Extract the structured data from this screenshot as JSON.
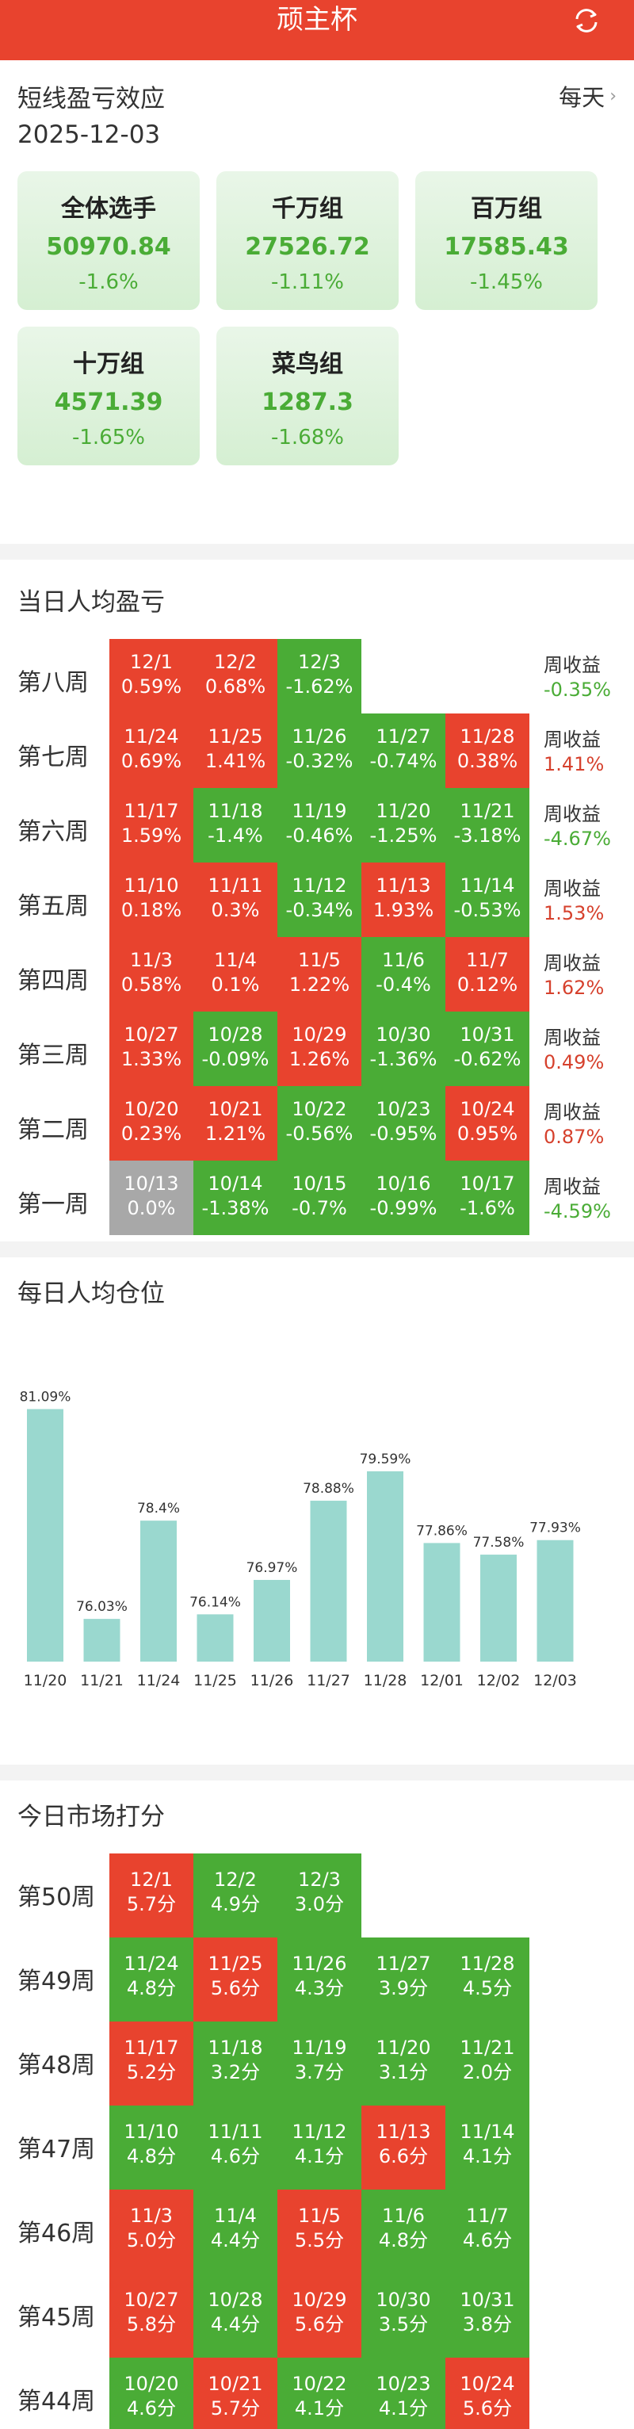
{
  "header": {
    "title": "顽主杯"
  },
  "summary": {
    "title": "短线盈亏效应",
    "frequency": "每天",
    "date": "2025-12-03",
    "groups": [
      {
        "name": "全体选手",
        "value": "50970.84",
        "change": "-1.6%"
      },
      {
        "name": "千万组",
        "value": "27526.72",
        "change": "-1.11%"
      },
      {
        "name": "百万组",
        "value": "17585.43",
        "change": "-1.45%"
      },
      {
        "name": "十万组",
        "value": "4571.39",
        "change": "-1.65%"
      },
      {
        "name": "菜鸟组",
        "value": "1287.3",
        "change": "-1.68%"
      }
    ]
  },
  "daily_pnl": {
    "title": "当日人均盈亏",
    "week_return_label": "周收益",
    "weeks": [
      {
        "label": "第八周",
        "week_return": "-0.35%",
        "days": [
          {
            "date": "12/1",
            "value": "0.59%",
            "color": "red"
          },
          {
            "date": "12/2",
            "value": "0.68%",
            "color": "red"
          },
          {
            "date": "12/3",
            "value": "-1.62%",
            "color": "green"
          }
        ]
      },
      {
        "label": "第七周",
        "week_return": "1.41%",
        "days": [
          {
            "date": "11/24",
            "value": "0.69%",
            "color": "red"
          },
          {
            "date": "11/25",
            "value": "1.41%",
            "color": "red"
          },
          {
            "date": "11/26",
            "value": "-0.32%",
            "color": "green"
          },
          {
            "date": "11/27",
            "value": "-0.74%",
            "color": "green"
          },
          {
            "date": "11/28",
            "value": "0.38%",
            "color": "red"
          }
        ]
      },
      {
        "label": "第六周",
        "week_return": "-4.67%",
        "days": [
          {
            "date": "11/17",
            "value": "1.59%",
            "color": "red"
          },
          {
            "date": "11/18",
            "value": "-1.4%",
            "color": "green"
          },
          {
            "date": "11/19",
            "value": "-0.46%",
            "color": "green"
          },
          {
            "date": "11/20",
            "value": "-1.25%",
            "color": "green"
          },
          {
            "date": "11/21",
            "value": "-3.18%",
            "color": "green"
          }
        ]
      },
      {
        "label": "第五周",
        "week_return": "1.53%",
        "days": [
          {
            "date": "11/10",
            "value": "0.18%",
            "color": "red"
          },
          {
            "date": "11/11",
            "value": "0.3%",
            "color": "red"
          },
          {
            "date": "11/12",
            "value": "-0.34%",
            "color": "green"
          },
          {
            "date": "11/13",
            "value": "1.93%",
            "color": "red"
          },
          {
            "date": "11/14",
            "value": "-0.53%",
            "color": "green"
          }
        ]
      },
      {
        "label": "第四周",
        "week_return": "1.62%",
        "days": [
          {
            "date": "11/3",
            "value": "0.58%",
            "color": "red"
          },
          {
            "date": "11/4",
            "value": "0.1%",
            "color": "red"
          },
          {
            "date": "11/5",
            "value": "1.22%",
            "color": "red"
          },
          {
            "date": "11/6",
            "value": "-0.4%",
            "color": "green"
          },
          {
            "date": "11/7",
            "value": "0.12%",
            "color": "red"
          }
        ]
      },
      {
        "label": "第三周",
        "week_return": "0.49%",
        "days": [
          {
            "date": "10/27",
            "value": "1.33%",
            "color": "red"
          },
          {
            "date": "10/28",
            "value": "-0.09%",
            "color": "green"
          },
          {
            "date": "10/29",
            "value": "1.26%",
            "color": "red"
          },
          {
            "date": "10/30",
            "value": "-1.36%",
            "color": "green"
          },
          {
            "date": "10/31",
            "value": "-0.62%",
            "color": "green"
          }
        ]
      },
      {
        "label": "第二周",
        "week_return": "0.87%",
        "days": [
          {
            "date": "10/20",
            "value": "0.23%",
            "color": "red"
          },
          {
            "date": "10/21",
            "value": "1.21%",
            "color": "red"
          },
          {
            "date": "10/22",
            "value": "-0.56%",
            "color": "green"
          },
          {
            "date": "10/23",
            "value": "-0.95%",
            "color": "green"
          },
          {
            "date": "10/24",
            "value": "0.95%",
            "color": "red"
          }
        ]
      },
      {
        "label": "第一周",
        "week_return": "-4.59%",
        "days": [
          {
            "date": "10/13",
            "value": "0.0%",
            "color": "gray"
          },
          {
            "date": "10/14",
            "value": "-1.38%",
            "color": "green"
          },
          {
            "date": "10/15",
            "value": "-0.7%",
            "color": "green"
          },
          {
            "date": "10/16",
            "value": "-0.99%",
            "color": "green"
          },
          {
            "date": "10/17",
            "value": "-1.6%",
            "color": "green"
          }
        ]
      }
    ]
  },
  "position": {
    "title": "每日人均仓位"
  },
  "chart_data": {
    "type": "bar",
    "title": "每日人均仓位",
    "categories": [
      "11/20",
      "11/21",
      "11/24",
      "11/25",
      "11/26",
      "11/27",
      "11/28",
      "12/01",
      "12/02",
      "12/03"
    ],
    "values": [
      81.09,
      76.03,
      78.4,
      76.14,
      76.97,
      78.88,
      79.59,
      77.86,
      77.58,
      77.93
    ],
    "labels": [
      "81.09%",
      "76.03%",
      "78.4%",
      "76.14%",
      "76.97%",
      "78.88%",
      "79.59%",
      "77.86%",
      "77.58%",
      "77.93%"
    ],
    "ylim": [
      75,
      81.5
    ],
    "bar_color": "#9ad8cf"
  },
  "market_score": {
    "title": "今日市场打分",
    "weeks": [
      {
        "label": "第50周",
        "days": [
          {
            "date": "12/1",
            "value": "5.7分",
            "color": "red"
          },
          {
            "date": "12/2",
            "value": "4.9分",
            "color": "green"
          },
          {
            "date": "12/3",
            "value": "3.0分",
            "color": "green"
          }
        ]
      },
      {
        "label": "第49周",
        "days": [
          {
            "date": "11/24",
            "value": "4.8分",
            "color": "green"
          },
          {
            "date": "11/25",
            "value": "5.6分",
            "color": "red"
          },
          {
            "date": "11/26",
            "value": "4.3分",
            "color": "green"
          },
          {
            "date": "11/27",
            "value": "3.9分",
            "color": "green"
          },
          {
            "date": "11/28",
            "value": "4.5分",
            "color": "green"
          }
        ]
      },
      {
        "label": "第48周",
        "days": [
          {
            "date": "11/17",
            "value": "5.2分",
            "color": "red"
          },
          {
            "date": "11/18",
            "value": "3.2分",
            "color": "green"
          },
          {
            "date": "11/19",
            "value": "3.7分",
            "color": "green"
          },
          {
            "date": "11/20",
            "value": "3.1分",
            "color": "green"
          },
          {
            "date": "11/21",
            "value": "2.0分",
            "color": "green"
          }
        ]
      },
      {
        "label": "第47周",
        "days": [
          {
            "date": "11/10",
            "value": "4.8分",
            "color": "green"
          },
          {
            "date": "11/11",
            "value": "4.6分",
            "color": "green"
          },
          {
            "date": "11/12",
            "value": "4.1分",
            "color": "green"
          },
          {
            "date": "11/13",
            "value": "6.6分",
            "color": "red"
          },
          {
            "date": "11/14",
            "value": "4.1分",
            "color": "green"
          }
        ]
      },
      {
        "label": "第46周",
        "days": [
          {
            "date": "11/3",
            "value": "5.0分",
            "color": "red"
          },
          {
            "date": "11/4",
            "value": "4.4分",
            "color": "green"
          },
          {
            "date": "11/5",
            "value": "5.5分",
            "color": "red"
          },
          {
            "date": "11/6",
            "value": "4.8分",
            "color": "green"
          },
          {
            "date": "11/7",
            "value": "4.6分",
            "color": "green"
          }
        ]
      },
      {
        "label": "第45周",
        "days": [
          {
            "date": "10/27",
            "value": "5.8分",
            "color": "red"
          },
          {
            "date": "10/28",
            "value": "4.4分",
            "color": "green"
          },
          {
            "date": "10/29",
            "value": "5.6分",
            "color": "red"
          },
          {
            "date": "10/30",
            "value": "3.5分",
            "color": "green"
          },
          {
            "date": "10/31",
            "value": "3.8分",
            "color": "green"
          }
        ]
      },
      {
        "label": "第44周",
        "days": [
          {
            "date": "10/20",
            "value": "4.6分",
            "color": "green"
          },
          {
            "date": "10/21",
            "value": "5.7分",
            "color": "red"
          },
          {
            "date": "10/22",
            "value": "4.1分",
            "color": "green"
          },
          {
            "date": "10/23",
            "value": "4.1分",
            "color": "green"
          },
          {
            "date": "10/24",
            "value": "5.6分",
            "color": "red"
          }
        ]
      }
    ]
  }
}
